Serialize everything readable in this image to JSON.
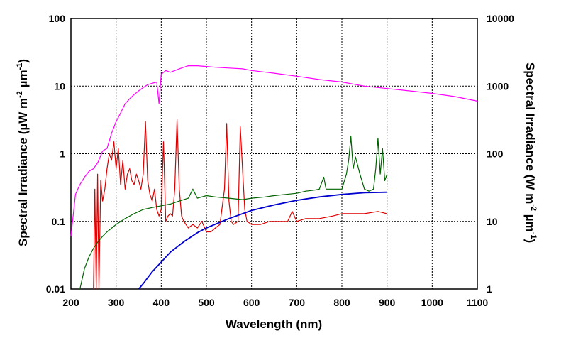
{
  "chart_data": {
    "type": "line",
    "xlabel": "Wavelength (nm)",
    "ylabel_left": {
      "text": "Spectral Irradiance (",
      "mu": "µ",
      "w": "W m",
      "sup1": "-2",
      "mid": " µm",
      "sup2": "-1",
      "close": ")"
    },
    "ylabel_right": {
      "text": "Spectral Irradiance (W m",
      "sup1": "-2",
      "mid": " µm",
      "sup2": "-1",
      "close": ")"
    },
    "xlim": [
      200,
      1100
    ],
    "ylim_left": [
      0.01,
      100
    ],
    "ylim_right": [
      1,
      10000
    ],
    "yscale": "log",
    "grid": true,
    "x_ticks": [
      "200",
      "300",
      "400",
      "500",
      "600",
      "700",
      "800",
      "900",
      "1000",
      "1100"
    ],
    "y_ticks_left": [
      "0.01",
      "0.1",
      "1",
      "10",
      "100"
    ],
    "y_ticks_right": [
      "1",
      "10",
      "100",
      "1000",
      "10000"
    ],
    "series": [
      {
        "color": "#ff00ff",
        "axis": "left",
        "x": [
          200,
          210,
          220,
          230,
          240,
          250,
          260,
          270,
          280,
          290,
          300,
          310,
          320,
          330,
          340,
          350,
          360,
          370,
          380,
          390,
          395,
          400,
          410,
          420,
          440,
          460,
          480,
          500,
          520,
          550,
          580,
          600,
          650,
          700,
          750,
          800,
          850,
          900,
          950,
          1000,
          1050,
          1100
        ],
        "y": [
          0.06,
          0.25,
          0.35,
          0.45,
          0.55,
          0.6,
          0.75,
          1.1,
          1.2,
          2.0,
          3.0,
          4.0,
          5.5,
          6.5,
          7.5,
          8.5,
          9.5,
          10.5,
          11.0,
          11.5,
          5.5,
          15.0,
          17.0,
          16.0,
          18.0,
          20.0,
          20.0,
          19.5,
          19.0,
          18.5,
          18.0,
          17.0,
          15.5,
          14.0,
          12.5,
          11.5,
          10.0,
          9.2,
          8.5,
          7.8,
          7.0,
          6.0
        ]
      },
      {
        "color": "#dd0000",
        "axis": "left",
        "x": [
          250,
          253,
          256,
          259,
          262,
          266,
          270,
          275,
          280,
          285,
          290,
          295,
          300,
          305,
          310,
          315,
          320,
          325,
          330,
          335,
          340,
          345,
          350,
          355,
          360,
          365,
          370,
          375,
          380,
          385,
          390,
          395,
          400,
          405,
          410,
          415,
          420,
          425,
          430,
          435,
          440,
          445,
          450,
          460,
          470,
          480,
          490,
          500,
          510,
          520,
          530,
          540,
          545,
          550,
          555,
          560,
          570,
          575,
          580,
          585,
          590,
          600,
          620,
          640,
          660,
          680,
          690,
          700,
          720,
          750,
          780,
          800,
          820,
          850,
          880,
          900
        ],
        "y": [
          0.01,
          0.3,
          0.01,
          0.5,
          0.01,
          0.4,
          0.2,
          0.3,
          0.6,
          1.0,
          0.8,
          1.5,
          0.6,
          1.2,
          0.35,
          0.8,
          0.3,
          0.5,
          0.6,
          0.4,
          0.35,
          0.5,
          0.4,
          0.3,
          0.5,
          3.0,
          0.4,
          0.25,
          0.2,
          0.3,
          0.15,
          0.12,
          0.15,
          1.5,
          0.1,
          0.12,
          0.13,
          0.12,
          0.3,
          3.2,
          0.3,
          0.12,
          0.1,
          0.08,
          0.09,
          0.08,
          0.1,
          0.07,
          0.07,
          0.08,
          0.09,
          0.3,
          2.8,
          0.2,
          0.1,
          0.09,
          0.1,
          2.5,
          0.6,
          0.15,
          0.1,
          0.09,
          0.09,
          0.1,
          0.1,
          0.1,
          0.14,
          0.1,
          0.11,
          0.11,
          0.12,
          0.13,
          0.13,
          0.13,
          0.14,
          0.13
        ]
      },
      {
        "color": "#006400",
        "axis": "left",
        "x": [
          220,
          230,
          240,
          250,
          260,
          270,
          280,
          300,
          320,
          340,
          360,
          380,
          400,
          420,
          440,
          460,
          470,
          480,
          500,
          520,
          550,
          580,
          600,
          630,
          650,
          700,
          720,
          740,
          750,
          760,
          765,
          770,
          780,
          800,
          810,
          815,
          820,
          825,
          830,
          840,
          850,
          860,
          870,
          875,
          880,
          885,
          890,
          895,
          900
        ],
        "y": [
          0.01,
          0.02,
          0.03,
          0.04,
          0.05,
          0.06,
          0.07,
          0.09,
          0.11,
          0.13,
          0.15,
          0.16,
          0.17,
          0.18,
          0.2,
          0.22,
          0.3,
          0.22,
          0.24,
          0.23,
          0.22,
          0.21,
          0.22,
          0.23,
          0.24,
          0.26,
          0.28,
          0.29,
          0.3,
          0.45,
          0.3,
          0.3,
          0.3,
          0.3,
          0.5,
          0.8,
          1.8,
          0.6,
          0.9,
          0.5,
          0.3,
          0.28,
          0.3,
          0.6,
          1.7,
          0.5,
          1.2,
          0.4,
          0.5
        ]
      },
      {
        "color": "#0000cc",
        "axis": "left",
        "x": [
          350,
          360,
          380,
          400,
          420,
          450,
          480,
          500,
          550,
          600,
          650,
          700,
          750,
          800,
          850,
          900
        ],
        "y": [
          0.01,
          0.012,
          0.018,
          0.025,
          0.035,
          0.05,
          0.068,
          0.08,
          0.11,
          0.145,
          0.175,
          0.205,
          0.23,
          0.25,
          0.265,
          0.27
        ]
      }
    ]
  }
}
